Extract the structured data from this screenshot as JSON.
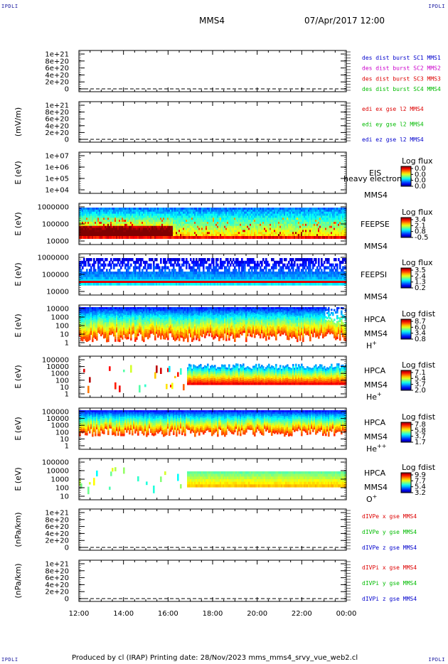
{
  "corners": {
    "tl": "IPDLI",
    "tr": "IPDLI",
    "bl": "IPDLI",
    "br": "IPDLI"
  },
  "header": {
    "mission": "MMS4",
    "date": "07/Apr/2017 12:00"
  },
  "footer": {
    "text": "Produced by cl (IRAP)   Printing date: 28/Nov/2023   mms_mms4_srvy_vue_web2.cl"
  },
  "chart_data": {
    "type": "heatmap",
    "x_ticks": [
      "12:00",
      "14:00",
      "16:00",
      "18:00",
      "20:00",
      "22:00",
      "00:00"
    ],
    "panels": [
      {
        "kind": "line",
        "ylabel": "",
        "yticks": [
          "1e+21",
          "8e+20",
          "6e+20",
          "4e+20",
          "2e+20",
          "0"
        ],
        "legend": [
          {
            "text": "des dist burst SC1 MMS1",
            "color": "#0000cc"
          },
          {
            "text": "des dist burst SC2 MMS2",
            "color": "#cc00cc"
          },
          {
            "text": "des dist burst SC3 MMS3",
            "color": "#dd0000"
          },
          {
            "text": "des dist burst SC4 MMS4",
            "color": "#00bb00"
          }
        ]
      },
      {
        "kind": "line",
        "ylabel": "(mV/m)",
        "yticks": [
          "1e+21",
          "8e+20",
          "6e+20",
          "4e+20",
          "2e+20",
          "0"
        ],
        "legend": [
          {
            "text": "edi ex gse l2 MMS4",
            "color": "#dd0000"
          },
          {
            "text": "edi ey gse l2 MMS4",
            "color": "#00bb00"
          },
          {
            "text": "edi ez gse l2 MMS4",
            "color": "#0000cc"
          }
        ]
      },
      {
        "kind": "spec",
        "ylabel": "E (eV)",
        "yticks": [
          "1e+07",
          "1e+06",
          "1e+05",
          "1e+04"
        ],
        "labels": [
          "EIS",
          "heavy electron to",
          "MMS4"
        ],
        "cb_title": "Log flux",
        "cb_ticks": [
          "0.0",
          "0.0",
          "0.0",
          "0.0"
        ],
        "fill": "none"
      },
      {
        "kind": "spec",
        "ylabel": "E (eV)",
        "yticks": [
          "1000000",
          "100000",
          "10000"
        ],
        "labels": [
          "FEEPSE",
          "MMS4"
        ],
        "cb_title": "Log flux",
        "cb_ticks": [
          "3.4",
          "2.1",
          "0.8",
          "-0.5"
        ],
        "fill": "feepse"
      },
      {
        "kind": "spec",
        "ylabel": "E (eV)",
        "yticks": [
          "1000000",
          "100000",
          "10000"
        ],
        "labels": [
          "FEEPSI",
          "MMS4"
        ],
        "cb_title": "Log flux",
        "cb_ticks": [
          "3.5",
          "2.4",
          "1.3",
          "0.2"
        ],
        "fill": "feepsi"
      },
      {
        "kind": "spec",
        "ylabel": "E (eV)",
        "yticks": [
          "10000",
          "1000",
          "100",
          "10",
          "1"
        ],
        "labels": [
          "HPCA",
          "MMS4",
          "H+"
        ],
        "cb_title": "Log fdist",
        "cb_ticks": [
          "8.7",
          "6.0",
          "3.4",
          "0.8"
        ],
        "fill": "hplus"
      },
      {
        "kind": "spec",
        "ylabel": "E (eV)",
        "yticks": [
          "100000",
          "10000",
          "1000",
          "100",
          "10",
          "1"
        ],
        "labels": [
          "HPCA",
          "MMS4",
          "He+"
        ],
        "cb_title": "Log fdist",
        "cb_ticks": [
          "7.1",
          "5.4",
          "3.7",
          "2.0"
        ],
        "fill": "heplus"
      },
      {
        "kind": "spec",
        "ylabel": "E (eV)",
        "yticks": [
          "100000",
          "10000",
          "1000",
          "100",
          "10",
          "1"
        ],
        "labels": [
          "HPCA",
          "MMS4",
          "He++"
        ],
        "cb_title": "Log fdist",
        "cb_ticks": [
          "7.8",
          "5.8",
          "3.7",
          "1.7"
        ],
        "fill": "hepp"
      },
      {
        "kind": "spec",
        "ylabel": "E (eV)",
        "yticks": [
          "100000",
          "10000",
          "1000",
          "100",
          "10"
        ],
        "labels": [
          "HPCA",
          "MMS4",
          "O+"
        ],
        "cb_title": "Log fdist",
        "cb_ticks": [
          "9.9",
          "7.7",
          "5.4",
          "3.2"
        ],
        "fill": "oplus"
      },
      {
        "kind": "line",
        "ylabel": "(nPa/km)",
        "yticks": [
          "1e+21",
          "8e+20",
          "6e+20",
          "4e+20",
          "2e+20",
          "0"
        ],
        "legend": [
          {
            "text": "dIVPe x gse MMS4",
            "color": "#dd0000"
          },
          {
            "text": "dIVPe y gse MMS4",
            "color": "#00bb00"
          },
          {
            "text": "dIVPe z gse MMS4",
            "color": "#0000cc"
          }
        ]
      },
      {
        "kind": "line",
        "ylabel": "(nPa/km)",
        "yticks": [
          "1e+21",
          "8e+20",
          "6e+20",
          "4e+20",
          "2e+20",
          "0"
        ],
        "legend": [
          {
            "text": "dIVPi x gse MMS4",
            "color": "#dd0000"
          },
          {
            "text": "dIVPi y gse MMS4",
            "color": "#00bb00"
          },
          {
            "text": "dIVPi z gse MMS4",
            "color": "#0000cc"
          }
        ]
      }
    ]
  }
}
